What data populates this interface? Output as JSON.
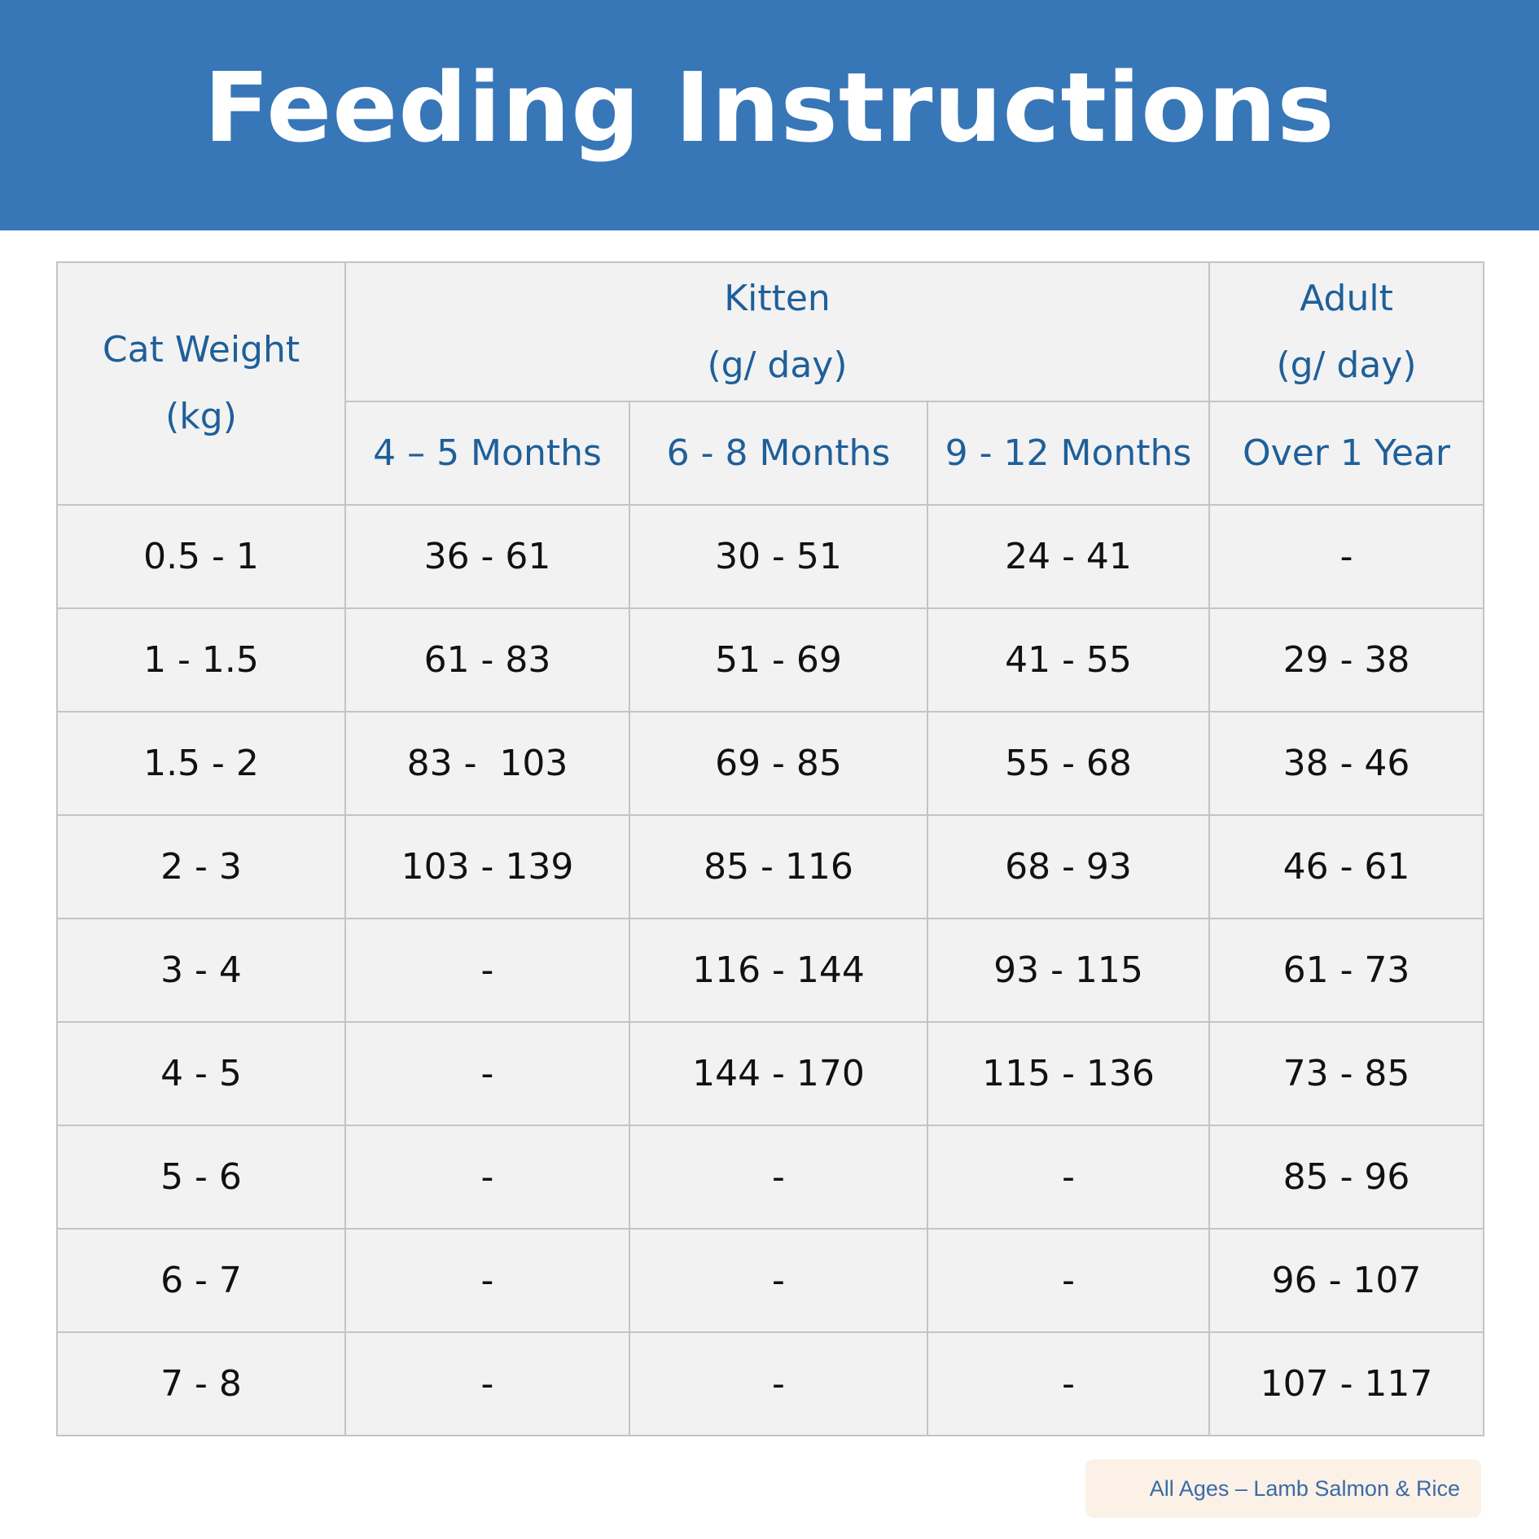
{
  "title": "Feeding Instructions",
  "header": {
    "weight": [
      "Cat Weight",
      "(kg)"
    ],
    "kitten": [
      "Kitten",
      "(g/ day)"
    ],
    "adult": [
      "Adult",
      "(g/ day)"
    ],
    "sub": [
      "4 – 5 Months",
      "6 - 8 Months",
      "9 - 12 Months",
      "Over 1 Year"
    ]
  },
  "rows": [
    [
      "0.5 - 1",
      "36 - 61",
      "30 - 51",
      "24 - 41",
      "-"
    ],
    [
      "1 - 1.5",
      "61 - 83",
      "51 - 69",
      "41 - 55",
      "29 - 38"
    ],
    [
      "1.5 - 2",
      "83 -  103",
      "69 - 85",
      "55 - 68",
      "38 - 46"
    ],
    [
      "2 - 3",
      "103 - 139",
      "85 - 116",
      "68 - 93",
      "46 - 61"
    ],
    [
      "3 - 4",
      "-",
      "116 - 144",
      "93 - 115",
      "61 - 73"
    ],
    [
      "4 - 5",
      "-",
      "144 - 170",
      "115 - 136",
      "73 - 85"
    ],
    [
      "5 - 6",
      "-",
      "-",
      "-",
      "85 - 96"
    ],
    [
      "6 - 7",
      "-",
      "-",
      "-",
      "96 - 107"
    ],
    [
      "7 - 8",
      "-",
      "-",
      "-",
      "107 - 117"
    ]
  ],
  "footer_tag": "All Ages – Lamb Salmon & Rice",
  "colors": {
    "banner": "#3776b7",
    "header_text": "#1f5f99",
    "cell_bg": "#f2f2f2",
    "tag_bg": "#fbf1e6"
  }
}
